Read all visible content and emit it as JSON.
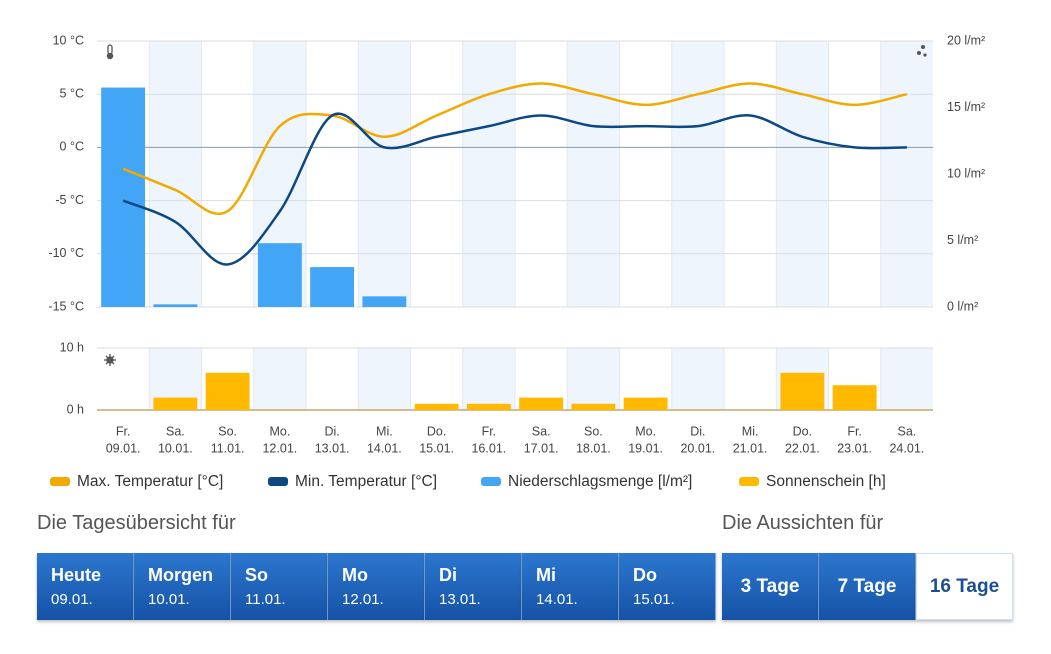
{
  "chart_data": [
    {
      "type": "line",
      "ylim": [
        -15,
        10
      ],
      "yticks": [
        {
          "value": 10,
          "label": "10 °C"
        },
        {
          "value": 5,
          "label": "5 °C"
        },
        {
          "value": 0,
          "label": "0 °C"
        },
        {
          "value": -5,
          "label": "-5 °C"
        },
        {
          "value": -10,
          "label": "-10 °C"
        },
        {
          "value": -15,
          "label": "-15 °C"
        }
      ],
      "y2lim": [
        0,
        20
      ],
      "y2ticks": [
        {
          "value": 20,
          "label": "20 l/m²"
        },
        {
          "value": 15,
          "label": "15 l/m²"
        },
        {
          "value": 10,
          "label": "10 l/m²"
        },
        {
          "value": 5,
          "label": "5 l/m²"
        },
        {
          "value": 0,
          "label": "0 l/m²"
        }
      ],
      "grid": true,
      "series": [
        {
          "name": "Max. Temperatur [°C]",
          "color": "#f2a900",
          "values": [
            -2,
            -4,
            -6,
            2,
            3,
            1,
            3,
            5,
            6,
            5,
            4,
            5,
            6,
            5,
            4,
            5
          ]
        },
        {
          "name": "Min. Temperatur [°C]",
          "color": "#0d4885",
          "values": [
            -5,
            -7,
            -11,
            -6,
            3,
            0,
            1,
            2,
            3,
            2,
            2,
            2,
            3,
            1,
            0,
            0
          ]
        },
        {
          "name": "Niederschlagsmenge [l/m²]",
          "color": "#42a5f5",
          "type": "bar",
          "axis": "y2",
          "values": [
            16.5,
            0.2,
            0,
            4.8,
            3,
            0.8,
            0,
            0,
            0,
            0,
            0,
            0,
            0,
            0,
            0,
            0
          ]
        }
      ]
    },
    {
      "type": "bar",
      "categories": [
        "Fr.",
        "Sa.",
        "So.",
        "Mo.",
        "Di.",
        "Mi.",
        "Do.",
        "Fr.",
        "Sa.",
        "So.",
        "Mo.",
        "Di.",
        "Mi.",
        "Do.",
        "Fr.",
        "Sa."
      ],
      "dates": [
        "09.01.",
        "10.01.",
        "11.01.",
        "12.01.",
        "13.01.",
        "14.01.",
        "15.01.",
        "16.01.",
        "17.01.",
        "18.01.",
        "19.01.",
        "20.01.",
        "21.01.",
        "22.01.",
        "23.01.",
        "24.01."
      ],
      "ylim": [
        0,
        10
      ],
      "yticks": [
        {
          "value": 10,
          "label": "10 h"
        },
        {
          "value": 0,
          "label": "0 h"
        }
      ],
      "series": [
        {
          "name": "Sonnenschein [h]",
          "color": "#ffb900",
          "values": [
            0,
            2,
            6,
            0,
            0,
            0,
            1,
            1,
            2,
            1,
            2,
            0,
            0,
            6,
            4,
            0
          ]
        }
      ]
    }
  ],
  "overview": {
    "title": "Die Tagesübersicht für",
    "tabs": [
      {
        "label": "Heute",
        "date": "09.01."
      },
      {
        "label": "Morgen",
        "date": "10.01."
      },
      {
        "label": "So",
        "date": "11.01."
      },
      {
        "label": "Mo",
        "date": "12.01."
      },
      {
        "label": "Di",
        "date": "13.01."
      },
      {
        "label": "Mi",
        "date": "14.01."
      },
      {
        "label": "Do",
        "date": "15.01."
      }
    ]
  },
  "outlook": {
    "title": "Die Aussichten für",
    "options": [
      "3 Tage",
      "7 Tage",
      "16 Tage"
    ],
    "active": 2
  }
}
